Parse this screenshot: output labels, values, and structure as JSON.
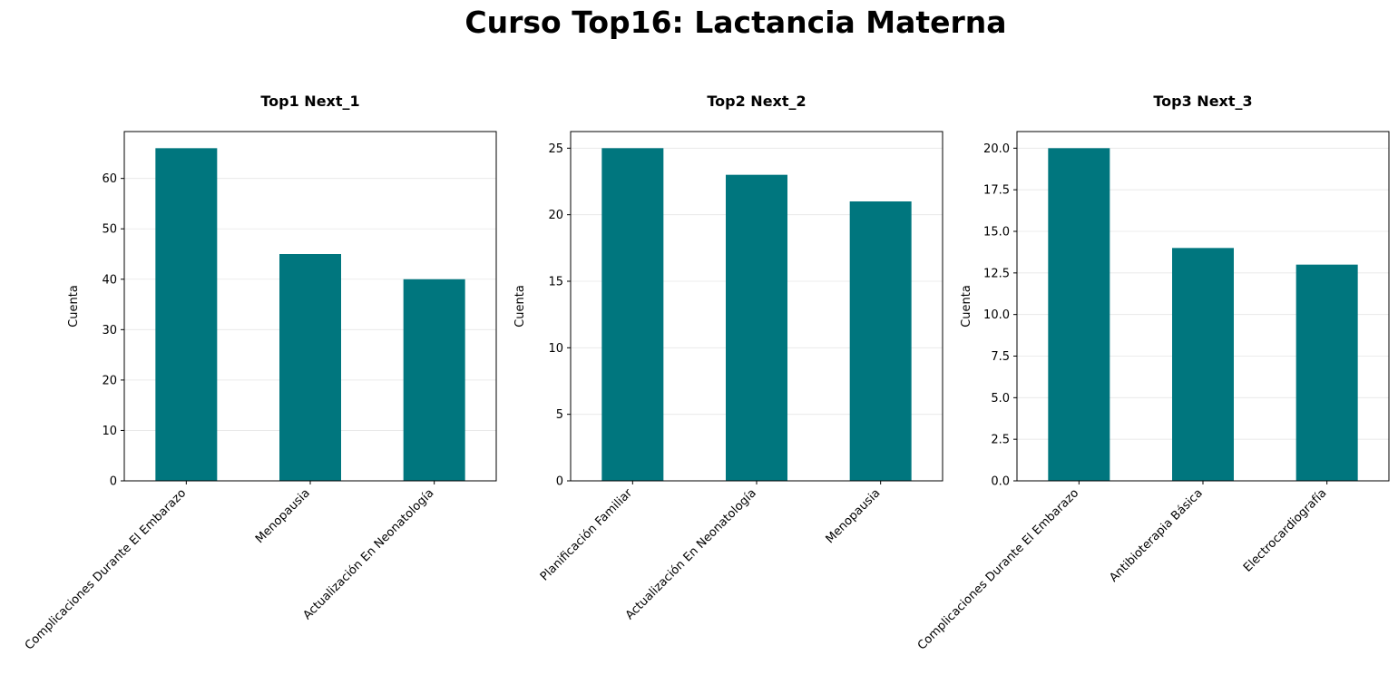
{
  "figure": {
    "title": "Curso Top16: Lactancia Materna"
  },
  "chart_data": [
    {
      "type": "bar",
      "title": "Top1 Next_1",
      "xlabel": "",
      "ylabel": "Cuenta",
      "ylim": [
        0,
        69.3
      ],
      "yticks": [
        0,
        10,
        20,
        30,
        40,
        50,
        60
      ],
      "ytick_labels": [
        "0",
        "10",
        "20",
        "30",
        "40",
        "50",
        "60"
      ],
      "categories": [
        "Complicaciones Durante El Embarazo",
        "Menopausia",
        "Actualización En Neonatología"
      ],
      "values": [
        66,
        45,
        40
      ],
      "color": "#00767e",
      "grid": "y"
    },
    {
      "type": "bar",
      "title": "Top2 Next_2",
      "xlabel": "",
      "ylabel": "Cuenta",
      "ylim": [
        0,
        26.25
      ],
      "yticks": [
        0,
        5,
        10,
        15,
        20,
        25
      ],
      "ytick_labels": [
        "0",
        "5",
        "10",
        "15",
        "20",
        "25"
      ],
      "categories": [
        "Planificación Familiar",
        "Actualización En Neonatología",
        "Menopausia"
      ],
      "values": [
        25,
        23,
        21
      ],
      "color": "#00767e",
      "grid": "y"
    },
    {
      "type": "bar",
      "title": "Top3 Next_3",
      "xlabel": "",
      "ylabel": "Cuenta",
      "ylim": [
        0,
        21
      ],
      "yticks": [
        0,
        2.5,
        5,
        7.5,
        10,
        12.5,
        15,
        17.5,
        20
      ],
      "ytick_labels": [
        "0.0",
        "2.5",
        "5.0",
        "7.5",
        "10.0",
        "12.5",
        "15.0",
        "17.5",
        "20.0"
      ],
      "categories": [
        "Complicaciones Durante El Embarazo",
        "Antibioterapia Básica",
        "Electrocardiografía"
      ],
      "values": [
        20,
        14,
        13
      ],
      "color": "#00767e",
      "grid": "y"
    }
  ]
}
